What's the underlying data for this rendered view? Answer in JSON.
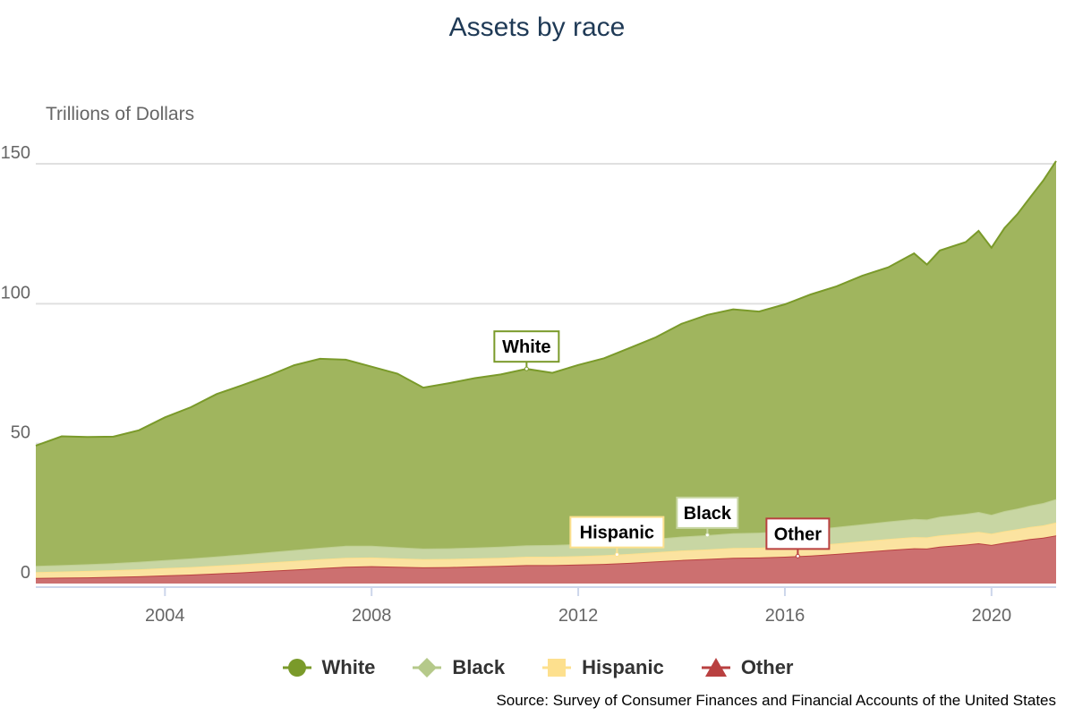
{
  "chart_data": {
    "type": "area",
    "stacked": true,
    "title": "Assets by race",
    "ylabel": "Trillions of Dollars",
    "xlabel": "",
    "ylim": [
      0,
      150
    ],
    "xlim": [
      2001.5,
      2021.25
    ],
    "yticks": [
      0,
      50,
      100,
      150
    ],
    "xticks": [
      2004,
      2008,
      2012,
      2016,
      2020
    ],
    "grid": true,
    "legend_position": "bottom",
    "source": "Source: Survey of Consumer Finances and Financial Accounts of the United States",
    "x": [
      2001.5,
      2002.0,
      2002.5,
      2003.0,
      2003.5,
      2004.0,
      2004.5,
      2005.0,
      2005.5,
      2006.0,
      2006.5,
      2007.0,
      2007.5,
      2008.0,
      2008.5,
      2009.0,
      2009.5,
      2010.0,
      2010.5,
      2011.0,
      2011.5,
      2012.0,
      2012.5,
      2013.0,
      2013.5,
      2014.0,
      2014.5,
      2015.0,
      2015.5,
      2016.0,
      2016.5,
      2017.0,
      2017.5,
      2018.0,
      2018.5,
      2018.75,
      2019.0,
      2019.5,
      2019.75,
      2020.0,
      2020.25,
      2020.5,
      2020.75,
      2021.0,
      2021.25
    ],
    "series": [
      {
        "name": "Other",
        "color": "#c14a4a",
        "values": [
          2.0,
          2.1,
          2.2,
          2.4,
          2.6,
          2.9,
          3.2,
          3.6,
          4.0,
          4.5,
          5.0,
          5.5,
          6.0,
          6.2,
          6.0,
          5.8,
          5.9,
          6.1,
          6.3,
          6.6,
          6.6,
          6.8,
          7.0,
          7.4,
          7.9,
          8.4,
          8.8,
          9.2,
          9.3,
          9.6,
          10.0,
          10.6,
          11.3,
          12.0,
          12.6,
          12.5,
          13.2,
          13.9,
          14.4,
          13.8,
          14.6,
          15.2,
          15.9,
          16.4,
          17.2
        ]
      },
      {
        "name": "Hispanic",
        "color": "#fde08e",
        "values": [
          2.1,
          2.2,
          2.3,
          2.4,
          2.5,
          2.6,
          2.7,
          2.8,
          2.9,
          3.0,
          3.1,
          3.2,
          3.2,
          3.1,
          3.0,
          2.9,
          2.9,
          2.9,
          2.9,
          3.0,
          3.0,
          3.0,
          3.1,
          3.2,
          3.3,
          3.4,
          3.4,
          3.5,
          3.5,
          3.6,
          3.6,
          3.7,
          3.8,
          3.9,
          4.0,
          4.0,
          4.0,
          4.1,
          4.1,
          4.0,
          4.1,
          4.2,
          4.3,
          4.4,
          4.6
        ]
      },
      {
        "name": "Black",
        "color": "#bfcf92",
        "values": [
          2.2,
          2.3,
          2.4,
          2.5,
          2.7,
          2.9,
          3.1,
          3.3,
          3.5,
          3.7,
          3.9,
          4.1,
          4.3,
          4.2,
          4.0,
          3.8,
          3.8,
          3.9,
          4.0,
          4.1,
          4.2,
          4.3,
          4.4,
          4.6,
          4.8,
          5.0,
          5.1,
          5.3,
          5.4,
          5.6,
          5.7,
          5.9,
          6.1,
          6.3,
          6.5,
          6.4,
          6.7,
          6.9,
          7.1,
          6.8,
          7.2,
          7.4,
          7.7,
          8.0,
          8.4
        ]
      },
      {
        "name": "White",
        "color": "#8aa83a",
        "values": [
          43.0,
          46.0,
          45.5,
          45.2,
          47.0,
          51.0,
          54.0,
          58.0,
          60.5,
          63.0,
          66.0,
          67.5,
          66.5,
          64.0,
          62.0,
          57.5,
          59.0,
          60.5,
          61.5,
          63.0,
          61.5,
          64.0,
          66.0,
          69.0,
          72.0,
          76.0,
          78.7,
          80.0,
          79.0,
          81.0,
          84.0,
          86.0,
          88.8,
          90.8,
          94.9,
          91.1,
          95.1,
          97.1,
          100.4,
          95.4,
          101.1,
          105.2,
          110.1,
          115.2,
          120.8
        ]
      }
    ],
    "annotations": [
      {
        "label": "White",
        "series": "White",
        "x": 2011.0
      },
      {
        "label": "Hispanic",
        "series": "Hispanic",
        "x": 2012.75
      },
      {
        "label": "Black",
        "series": "Black",
        "x": 2014.5
      },
      {
        "label": "Other",
        "series": "Other",
        "x": 2016.25
      }
    ],
    "legend": [
      {
        "name": "White",
        "symbol": "circle",
        "color": "#7a9a2a"
      },
      {
        "name": "Black",
        "symbol": "diamond",
        "color": "#b5c98a"
      },
      {
        "name": "Hispanic",
        "symbol": "square",
        "color": "#fde08e"
      },
      {
        "name": "Other",
        "symbol": "triangle",
        "color": "#b94040"
      }
    ]
  }
}
